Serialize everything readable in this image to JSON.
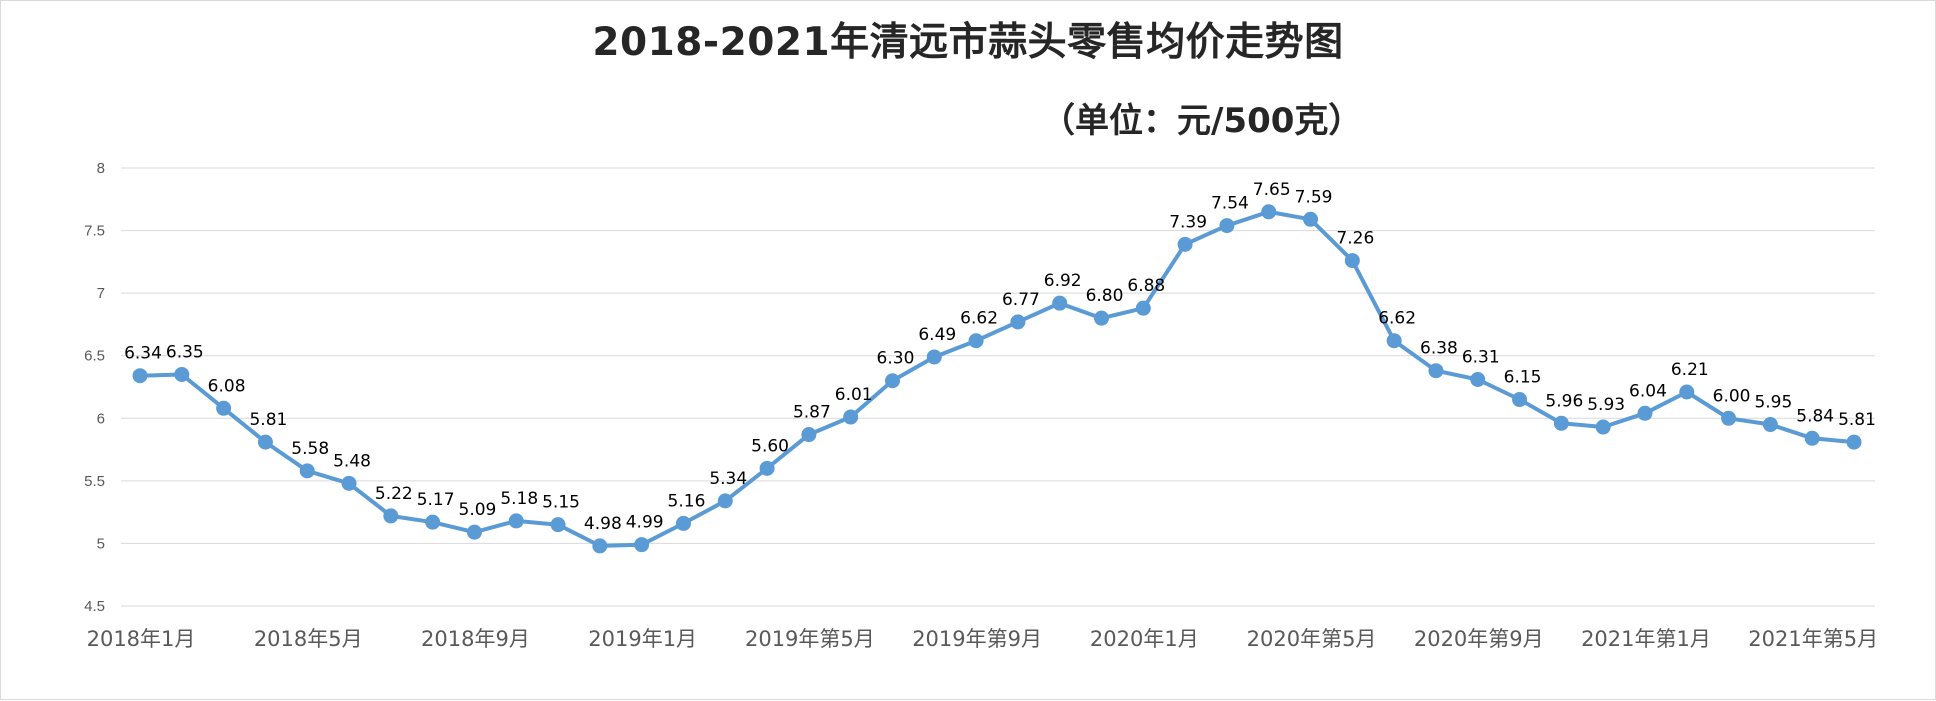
{
  "chart_data": {
    "type": "line",
    "title": "2018-2021年清远市蒜头零售均价走势图",
    "subtitle": "（单位：元/500克）",
    "xlabel": "",
    "ylabel": "",
    "ylim": [
      4.5,
      8
    ],
    "yticks": [
      "4.5",
      "5",
      "5.5",
      "6",
      "6.5",
      "7",
      "7.5",
      "8"
    ],
    "grid": true,
    "legend": "none",
    "line_color": "#5b9bd5",
    "grid_color": "#d9d9d9",
    "xtick_labels": [
      {
        "index": 0,
        "label": "2018年1月"
      },
      {
        "index": 4,
        "label": "2018年5月"
      },
      {
        "index": 8,
        "label": "2018年9月"
      },
      {
        "index": 12,
        "label": "2019年1月"
      },
      {
        "index": 16,
        "label": "2019年第5月"
      },
      {
        "index": 20,
        "label": "2019年第9月"
      },
      {
        "index": 24,
        "label": "2020年1月"
      },
      {
        "index": 28,
        "label": "2020年第5月"
      },
      {
        "index": 32,
        "label": "2020年第9月"
      },
      {
        "index": 36,
        "label": "2021年第1月"
      },
      {
        "index": 40,
        "label": "2021年第5月"
      }
    ],
    "series": [
      {
        "values": [
          6.34,
          6.35,
          6.08,
          5.81,
          5.58,
          5.48,
          5.22,
          5.17,
          5.09,
          5.18,
          5.15,
          4.98,
          4.99,
          5.16,
          5.34,
          5.6,
          5.87,
          6.01,
          6.3,
          6.49,
          6.62,
          6.77,
          6.92,
          6.8,
          6.88,
          7.39,
          7.54,
          7.65,
          7.59,
          7.26,
          6.62,
          6.38,
          6.31,
          6.15,
          5.96,
          5.93,
          6.04,
          6.21,
          6.0,
          5.95,
          5.84,
          5.81
        ],
        "labels": [
          "6.34",
          "6.35",
          "6.08",
          "5.81",
          "5.58",
          "5.48",
          "5.22",
          "5.17",
          "5.09",
          "5.18",
          "5.15",
          "4.98",
          "4.99",
          "5.16",
          "5.34",
          "5.60",
          "5.87",
          "6.01",
          "6.30",
          "6.49",
          "6.62",
          "6.77",
          "6.92",
          "6.80",
          "6.88",
          "7.39",
          "7.54",
          "7.65",
          "7.59",
          "7.26",
          "6.62",
          "6.38",
          "6.31",
          "6.15",
          "5.96",
          "5.93",
          "6.04",
          "6.21",
          "6.00",
          "5.95",
          "5.84",
          "5.81"
        ]
      }
    ]
  }
}
